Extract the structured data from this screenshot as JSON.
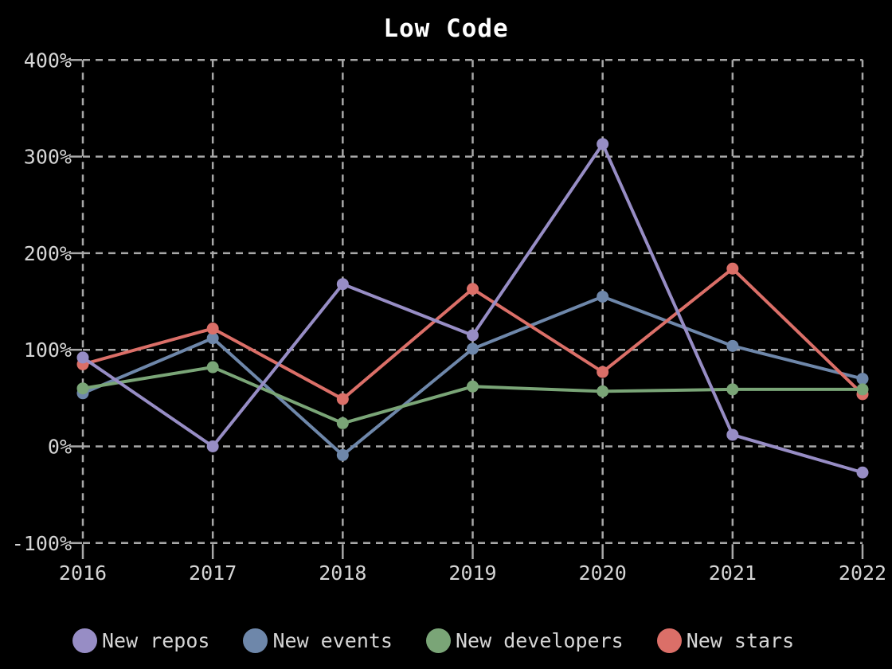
{
  "title": "Low Code",
  "colors": {
    "background": "#000000",
    "title_text": "#ffffff",
    "axis_text": "#d5d5d5",
    "grid": "#a8a8a8"
  },
  "chart_data": {
    "type": "line",
    "title": "Low Code",
    "x": [
      "2016",
      "2017",
      "2018",
      "2019",
      "2020",
      "2021",
      "2022"
    ],
    "series": [
      {
        "name": "New repos",
        "color": "#978dc5",
        "values": [
          92,
          0,
          168,
          115,
          313,
          12,
          -27
        ]
      },
      {
        "name": "New events",
        "color": "#6e87aa",
        "values": [
          55,
          112,
          -9,
          101,
          155,
          104,
          70
        ]
      },
      {
        "name": "New developers",
        "color": "#7aa577",
        "values": [
          60,
          82,
          24,
          62,
          57,
          59,
          59
        ]
      },
      {
        "name": "New stars",
        "color": "#db6f68",
        "values": [
          85,
          122,
          49,
          163,
          77,
          184,
          54
        ]
      }
    ],
    "draw_order": [
      "New events",
      "New stars",
      "New developers",
      "New repos"
    ],
    "y_ticks": [
      400,
      300,
      200,
      100,
      0,
      -100
    ],
    "y_tick_labels": [
      "400%",
      "300%",
      "200%",
      "100%",
      "0%",
      "-100%"
    ],
    "ylim": [
      -113,
      400
    ],
    "xlabel": "",
    "ylabel": "",
    "grid": "dashed",
    "legend_position": "bottom"
  }
}
